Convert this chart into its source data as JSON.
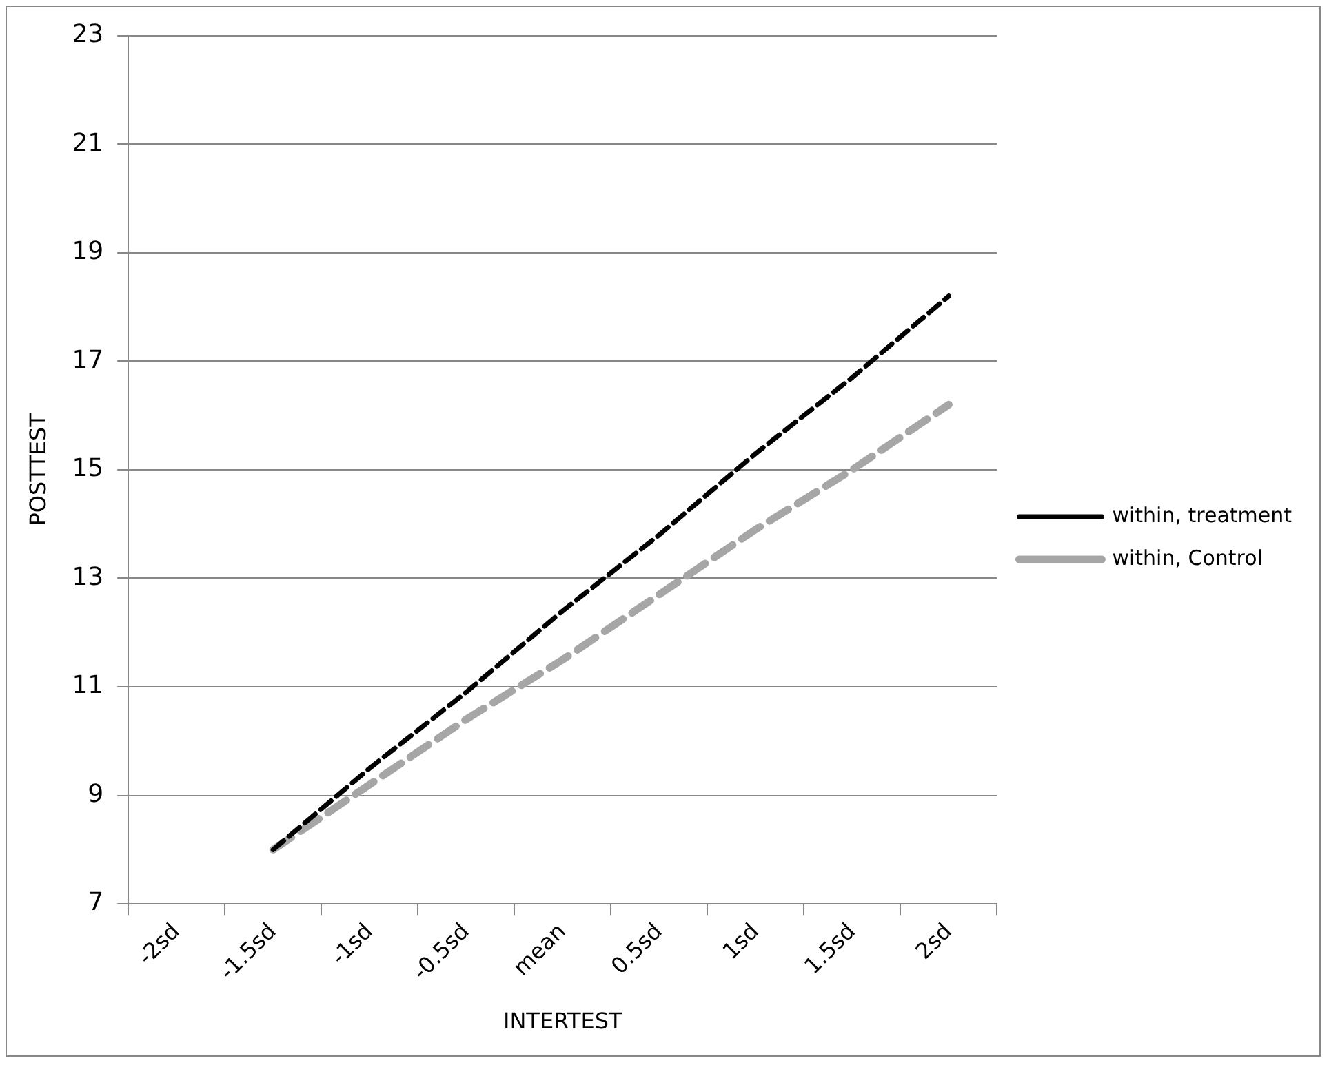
{
  "chart_data": {
    "type": "line",
    "xlabel": "INTERTEST",
    "ylabel": "POSTTEST",
    "categories": [
      "-2sd",
      "-1.5sd",
      "-1sd",
      "-0.5sd",
      "mean",
      "0.5sd",
      "1sd",
      "1.5sd",
      "2sd"
    ],
    "series": [
      {
        "name": "within, treatment",
        "color": "#000000",
        "values": [
          null,
          8.0,
          9.5,
          10.9,
          12.4,
          13.8,
          15.3,
          16.7,
          18.2
        ]
      },
      {
        "name": "within, Control",
        "color": "#a6a6a6",
        "values": [
          null,
          8.0,
          9.2,
          10.4,
          11.5,
          12.7,
          13.9,
          15.0,
          16.2
        ]
      }
    ],
    "ylim": [
      7,
      23
    ],
    "yticks": [
      7,
      9,
      11,
      13,
      15,
      17,
      19,
      21,
      23
    ],
    "grid": "y",
    "legend": "right",
    "marker": "none",
    "line_style": "dashed"
  }
}
